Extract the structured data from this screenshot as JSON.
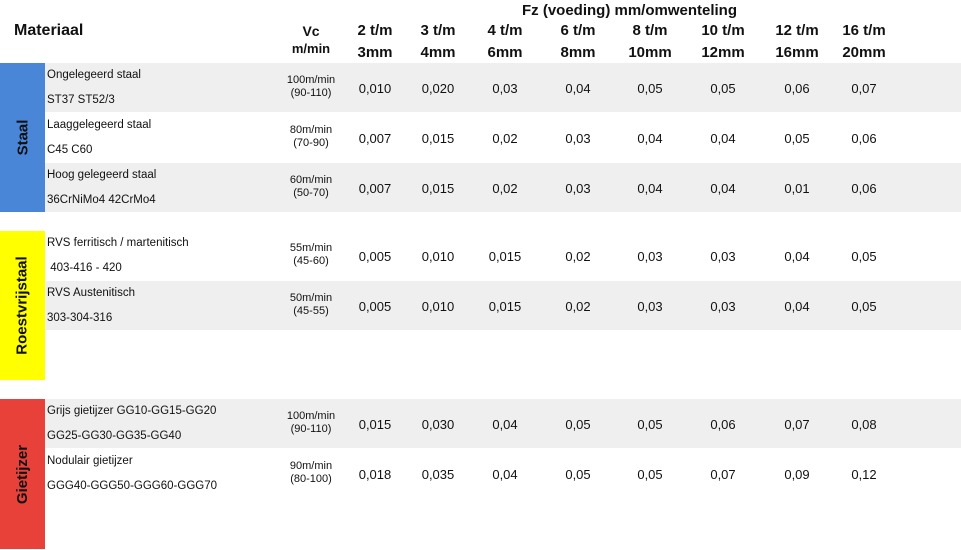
{
  "header": {
    "materiaal": "Materiaal",
    "fz_title": "Fz  (voeding) mm/omwenteling",
    "vc_line1": "Vc",
    "vc_line2": "m/min",
    "columns": [
      {
        "l1": "2 t/m",
        "l2": "3mm"
      },
      {
        "l1": "3 t/m",
        "l2": "4mm"
      },
      {
        "l1": "4 t/m",
        "l2": "6mm"
      },
      {
        "l1": "6 t/m",
        "l2": "8mm"
      },
      {
        "l1": "8 t/m",
        "l2": "10mm"
      },
      {
        "l1": "10 t/m",
        "l2": "12mm"
      },
      {
        "l1": "12 t/m",
        "l2": "16mm"
      },
      {
        "l1": "16 t/m",
        "l2": "20mm"
      }
    ]
  },
  "groups": [
    {
      "label": "Staal",
      "color": "#4a86d8"
    },
    {
      "label": "Roestvrijstaal",
      "color": "#ffff00"
    },
    {
      "label": "Gietijzer",
      "color": "#e8413a"
    }
  ],
  "rows": [
    {
      "name": "Ongelegeerd staal",
      "grades": "ST37 ST52/3",
      "vc1": "100m/min",
      "vc2": "(90-110)",
      "values": [
        "0,010",
        "0,020",
        "0,03",
        "0,04",
        "0,05",
        "0,05",
        "0,06",
        "0,07"
      ]
    },
    {
      "name": "Laaggelegeerd staal",
      "grades": "C45 C60",
      "vc1": "80m/min",
      "vc2": "(70-90)",
      "values": [
        "0,007",
        "0,015",
        "0,02",
        "0,03",
        "0,04",
        "0,04",
        "0,05",
        "0,06"
      ]
    },
    {
      "name": "Hoog gelegeerd staal",
      "grades": "36CrNiMo4 42CrMo4",
      "vc1": "60m/min",
      "vc2": "(50-70)",
      "values": [
        "0,007",
        "0,015",
        "0,02",
        "0,03",
        "0,04",
        "0,04",
        "0,01",
        "0,06"
      ]
    },
    {
      "name": "RVS ferritisch / martenitisch",
      "grades": " 403-416 - 420",
      "vc1": "55m/min",
      "vc2": "(45-60)",
      "values": [
        "0,005",
        "0,010",
        "0,015",
        "0,02",
        "0,03",
        "0,03",
        "0,04",
        "0,05"
      ]
    },
    {
      "name": "RVS Austenitisch",
      "grades": "303-304-316",
      "vc1": "50m/min",
      "vc2": "(45-55)",
      "values": [
        "0,005",
        "0,010",
        "0,015",
        "0,02",
        "0,03",
        "0,03",
        "0,04",
        "0,05"
      ]
    },
    {
      "name": "Grijs gietijzer GG10-GG15-GG20",
      "grades": "GG25-GG30-GG35-GG40",
      "vc1": "100m/min",
      "vc2": "(90-110)",
      "values": [
        "0,015",
        "0,030",
        "0,04",
        "0,05",
        "0,05",
        "0,06",
        "0,07",
        "0,08"
      ]
    },
    {
      "name": "Nodulair gietijzer",
      "grades": "GGG40-GGG50-GGG60-GGG70",
      "vc1": "90m/min",
      "vc2": "(80-100)",
      "values": [
        "0,018",
        "0,035",
        "0,04",
        "0,05",
        "0,05",
        "0,07",
        "0,09",
        "0,12"
      ]
    }
  ]
}
